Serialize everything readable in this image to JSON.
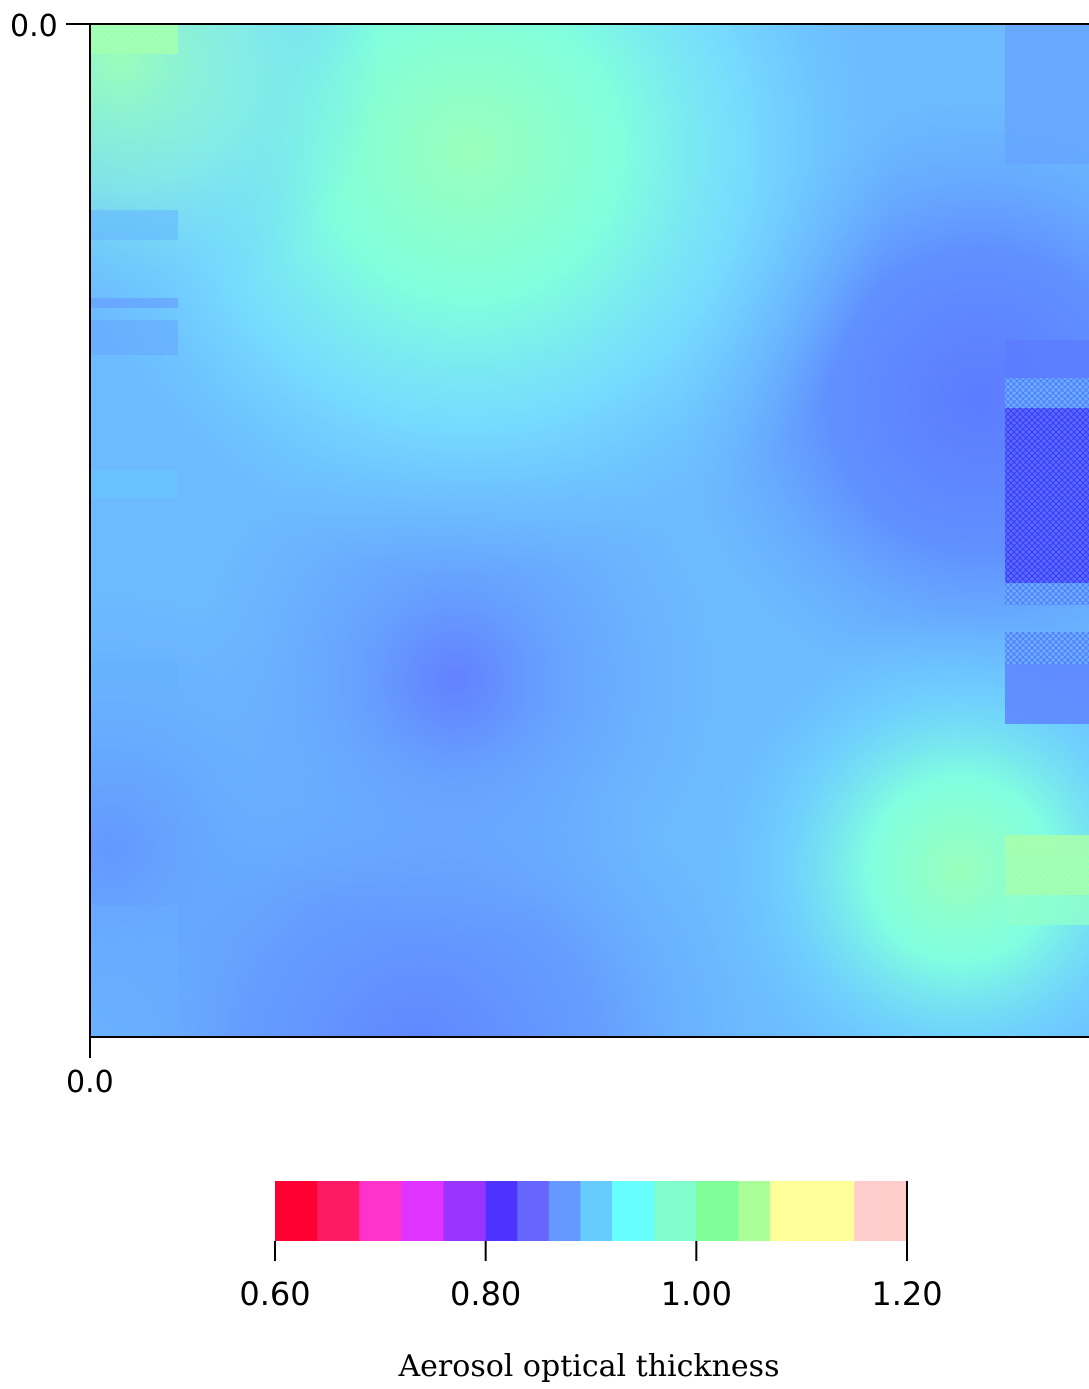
{
  "chart_data": {
    "type": "heatmap",
    "title": "",
    "xlabel": "",
    "ylabel": "",
    "x_ticks": [
      "0.0"
    ],
    "y_ticks": [
      "0.0"
    ],
    "colorbar": {
      "label": "Aerosol optical thickness",
      "range": [
        0.6,
        1.2
      ],
      "ticks": [
        "0.60",
        "0.80",
        "1.00",
        "1.20"
      ],
      "tick_values": [
        0.6,
        0.8,
        1.0,
        1.2
      ],
      "stops": [
        {
          "value": 0.6,
          "color": "#ff0033"
        },
        {
          "value": 0.64,
          "color": "#ff1a66"
        },
        {
          "value": 0.68,
          "color": "#ff33cc"
        },
        {
          "value": 0.72,
          "color": "#e033ff"
        },
        {
          "value": 0.76,
          "color": "#9933ff"
        },
        {
          "value": 0.8,
          "color": "#4d33ff"
        },
        {
          "value": 0.83,
          "color": "#6666ff"
        },
        {
          "value": 0.86,
          "color": "#6699ff"
        },
        {
          "value": 0.89,
          "color": "#66ccff"
        },
        {
          "value": 0.92,
          "color": "#66ffff"
        },
        {
          "value": 0.96,
          "color": "#80ffcc"
        },
        {
          "value": 1.0,
          "color": "#80ff99"
        },
        {
          "value": 1.04,
          "color": "#aaff99"
        },
        {
          "value": 1.07,
          "color": "#ffff99"
        },
        {
          "value": 1.12,
          "color": "#ffff99"
        },
        {
          "value": 1.15,
          "color": "#ffcccc"
        },
        {
          "value": 1.2,
          "color": "#ffffff"
        }
      ]
    },
    "field_description_values": {
      "background": 0.86,
      "peaks": [
        {
          "name": "top-center-high",
          "value": 0.99
        },
        {
          "name": "bottom-right-high",
          "value": 0.96
        },
        {
          "name": "right-mid-low",
          "value": 0.8
        },
        {
          "name": "center-low",
          "value": 0.84
        }
      ]
    }
  }
}
